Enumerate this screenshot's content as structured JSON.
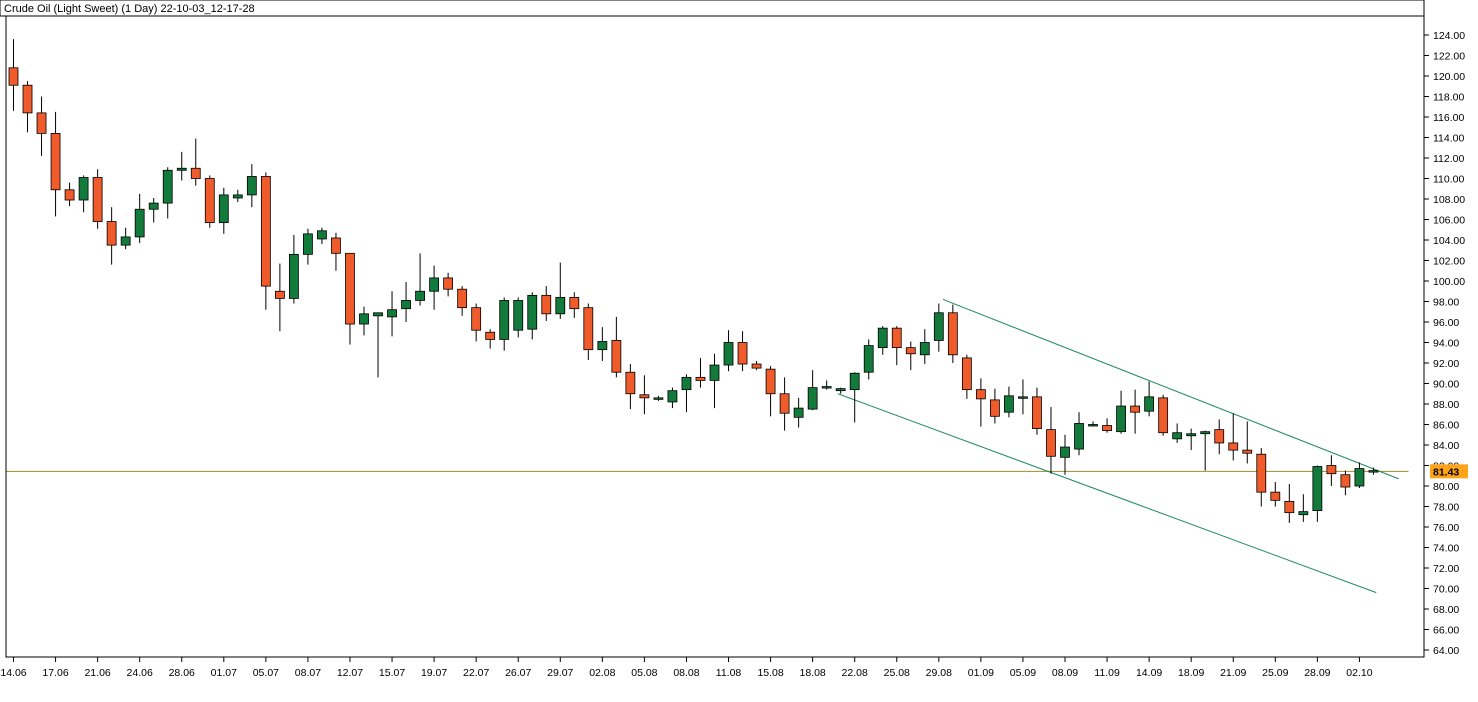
{
  "chart_data": {
    "type": "candlestick",
    "title": "Crude Oil (Light Sweet) (1 Day) 22-10-03_12-17-28",
    "ylim": [
      63,
      126
    ],
    "y_ticks": [
      124,
      122,
      120,
      118,
      116,
      114,
      112,
      110,
      108,
      106,
      104,
      102,
      100,
      98,
      96,
      94,
      92,
      90,
      88,
      86,
      84,
      82,
      80,
      78,
      76,
      74,
      72,
      70,
      68,
      66,
      64
    ],
    "y_tick_labels": [
      "124.00",
      "122.00",
      "120.00",
      "118.00",
      "116.00",
      "114.00",
      "112.00",
      "110.00",
      "108.00",
      "106.00",
      "104.00",
      "102.00",
      "100.00",
      "98.00",
      "96.00",
      "94.00",
      "92.00",
      "90.00",
      "88.00",
      "86.00",
      "84.00",
      "82.00",
      "80.00",
      "78.00",
      "76.00",
      "74.00",
      "72.00",
      "70.00",
      "68.00",
      "66.00",
      "64.00"
    ],
    "x_ticks": [
      {
        "bar": 0,
        "label": "14.06"
      },
      {
        "bar": 3,
        "label": "17.06"
      },
      {
        "bar": 6,
        "label": "21.06"
      },
      {
        "bar": 9,
        "label": "24.06"
      },
      {
        "bar": 12,
        "label": "28.06"
      },
      {
        "bar": 15,
        "label": "01.07"
      },
      {
        "bar": 18,
        "label": "05.07"
      },
      {
        "bar": 21,
        "label": "08.07"
      },
      {
        "bar": 24,
        "label": "12.07"
      },
      {
        "bar": 27,
        "label": "15.07"
      },
      {
        "bar": 30,
        "label": "19.07"
      },
      {
        "bar": 33,
        "label": "22.07"
      },
      {
        "bar": 36,
        "label": "26.07"
      },
      {
        "bar": 39,
        "label": "29.07"
      },
      {
        "bar": 42,
        "label": "02.08"
      },
      {
        "bar": 45,
        "label": "05.08"
      },
      {
        "bar": 48,
        "label": "08.08"
      },
      {
        "bar": 51,
        "label": "11.08"
      },
      {
        "bar": 54,
        "label": "15.08"
      },
      {
        "bar": 57,
        "label": "18.08"
      },
      {
        "bar": 60,
        "label": "22.08"
      },
      {
        "bar": 63,
        "label": "25.08"
      },
      {
        "bar": 66,
        "label": "29.08"
      },
      {
        "bar": 69,
        "label": "01.09"
      },
      {
        "bar": 72,
        "label": "05.09"
      },
      {
        "bar": 75,
        "label": "08.09"
      },
      {
        "bar": 78,
        "label": "11.09"
      },
      {
        "bar": 81,
        "label": "14.09"
      },
      {
        "bar": 84,
        "label": "18.09"
      },
      {
        "bar": 87,
        "label": "21.09"
      },
      {
        "bar": 90,
        "label": "25.09"
      },
      {
        "bar": 93,
        "label": "28.09"
      },
      {
        "bar": 96,
        "label": "02.10"
      }
    ],
    "candles": [
      {
        "o": 120.8,
        "h": 123.6,
        "l": 116.6,
        "c": 119.1
      },
      {
        "o": 119.1,
        "h": 119.5,
        "l": 114.5,
        "c": 116.4
      },
      {
        "o": 116.4,
        "h": 118.0,
        "l": 112.2,
        "c": 114.4
      },
      {
        "o": 114.4,
        "h": 116.5,
        "l": 106.3,
        "c": 108.9
      },
      {
        "o": 108.9,
        "h": 109.6,
        "l": 107.3,
        "c": 107.9
      },
      {
        "o": 107.9,
        "h": 110.3,
        "l": 106.7,
        "c": 110.1
      },
      {
        "o": 110.1,
        "h": 110.9,
        "l": 105.1,
        "c": 105.8
      },
      {
        "o": 105.8,
        "h": 107.2,
        "l": 101.6,
        "c": 103.5
      },
      {
        "o": 103.5,
        "h": 105.2,
        "l": 103.1,
        "c": 104.3
      },
      {
        "o": 104.3,
        "h": 108.5,
        "l": 103.7,
        "c": 107.0
      },
      {
        "o": 107.0,
        "h": 108.1,
        "l": 105.7,
        "c": 107.6
      },
      {
        "o": 107.6,
        "h": 111.1,
        "l": 106.1,
        "c": 110.8
      },
      {
        "o": 110.8,
        "h": 112.6,
        "l": 109.8,
        "c": 111.0
      },
      {
        "o": 111.0,
        "h": 113.9,
        "l": 109.3,
        "c": 110.0
      },
      {
        "o": 110.0,
        "h": 110.3,
        "l": 105.2,
        "c": 105.7
      },
      {
        "o": 105.7,
        "h": 109.1,
        "l": 104.6,
        "c": 108.4
      },
      {
        "o": 108.1,
        "h": 108.9,
        "l": 107.7,
        "c": 108.4
      },
      {
        "o": 108.4,
        "h": 111.4,
        "l": 107.2,
        "c": 110.2
      },
      {
        "o": 110.2,
        "h": 110.6,
        "l": 97.2,
        "c": 99.5
      },
      {
        "o": 99.0,
        "h": 101.7,
        "l": 95.1,
        "c": 98.3
      },
      {
        "o": 98.3,
        "h": 104.5,
        "l": 97.8,
        "c": 102.6
      },
      {
        "o": 102.6,
        "h": 105.1,
        "l": 101.6,
        "c": 104.6
      },
      {
        "o": 104.1,
        "h": 105.2,
        "l": 103.6,
        "c": 104.9
      },
      {
        "o": 104.2,
        "h": 104.7,
        "l": 101.0,
        "c": 102.7
      },
      {
        "o": 102.7,
        "h": 102.7,
        "l": 93.8,
        "c": 95.8
      },
      {
        "o": 95.8,
        "h": 97.5,
        "l": 94.7,
        "c": 96.8
      },
      {
        "o": 96.6,
        "h": 96.7,
        "l": 90.6,
        "c": 96.9
      },
      {
        "o": 96.5,
        "h": 99.0,
        "l": 94.6,
        "c": 97.2
      },
      {
        "o": 97.3,
        "h": 99.9,
        "l": 96.0,
        "c": 98.1
      },
      {
        "o": 98.1,
        "h": 102.7,
        "l": 97.6,
        "c": 99.0
      },
      {
        "o": 99.0,
        "h": 101.5,
        "l": 97.2,
        "c": 100.3
      },
      {
        "o": 100.3,
        "h": 100.8,
        "l": 98.5,
        "c": 99.2
      },
      {
        "o": 99.2,
        "h": 99.5,
        "l": 96.6,
        "c": 97.4
      },
      {
        "o": 97.4,
        "h": 97.8,
        "l": 94.1,
        "c": 95.2
      },
      {
        "o": 95.0,
        "h": 95.3,
        "l": 93.4,
        "c": 94.3
      },
      {
        "o": 94.3,
        "h": 98.4,
        "l": 93.2,
        "c": 98.1
      },
      {
        "o": 95.2,
        "h": 98.4,
        "l": 94.5,
        "c": 98.1
      },
      {
        "o": 95.3,
        "h": 98.9,
        "l": 94.3,
        "c": 98.6
      },
      {
        "o": 98.6,
        "h": 99.5,
        "l": 96.1,
        "c": 96.8
      },
      {
        "o": 96.8,
        "h": 101.8,
        "l": 96.3,
        "c": 98.4
      },
      {
        "o": 98.4,
        "h": 98.9,
        "l": 96.4,
        "c": 97.3
      },
      {
        "o": 97.4,
        "h": 97.8,
        "l": 92.3,
        "c": 93.3
      },
      {
        "o": 93.3,
        "h": 95.5,
        "l": 92.2,
        "c": 94.1
      },
      {
        "o": 94.2,
        "h": 96.5,
        "l": 90.6,
        "c": 91.1
      },
      {
        "o": 91.1,
        "h": 91.9,
        "l": 87.5,
        "c": 89.0
      },
      {
        "o": 88.9,
        "h": 90.8,
        "l": 87.0,
        "c": 88.6
      },
      {
        "o": 88.5,
        "h": 88.8,
        "l": 88.3,
        "c": 88.6
      },
      {
        "o": 88.2,
        "h": 89.6,
        "l": 87.6,
        "c": 89.3
      },
      {
        "o": 89.4,
        "h": 90.9,
        "l": 87.2,
        "c": 90.6
      },
      {
        "o": 90.6,
        "h": 92.5,
        "l": 89.6,
        "c": 90.3
      },
      {
        "o": 90.3,
        "h": 92.9,
        "l": 87.6,
        "c": 91.8
      },
      {
        "o": 91.8,
        "h": 95.2,
        "l": 91.2,
        "c": 94.0
      },
      {
        "o": 94.0,
        "h": 95.1,
        "l": 91.2,
        "c": 91.9
      },
      {
        "o": 91.9,
        "h": 92.2,
        "l": 91.3,
        "c": 91.5
      },
      {
        "o": 91.4,
        "h": 91.7,
        "l": 86.8,
        "c": 89.0
      },
      {
        "o": 89.0,
        "h": 90.6,
        "l": 85.4,
        "c": 87.1
      },
      {
        "o": 86.7,
        "h": 88.6,
        "l": 85.7,
        "c": 87.6
      },
      {
        "o": 87.5,
        "h": 91.3,
        "l": 87.4,
        "c": 89.6
      },
      {
        "o": 89.7,
        "h": 90.3,
        "l": 89.4,
        "c": 89.7
      },
      {
        "o": 89.3,
        "h": 89.6,
        "l": 89.0,
        "c": 89.5
      },
      {
        "o": 89.4,
        "h": 91.1,
        "l": 86.2,
        "c": 91.0
      },
      {
        "o": 91.1,
        "h": 94.3,
        "l": 90.4,
        "c": 93.7
      },
      {
        "o": 93.5,
        "h": 95.6,
        "l": 92.8,
        "c": 95.4
      },
      {
        "o": 95.4,
        "h": 95.6,
        "l": 91.8,
        "c": 93.5
      },
      {
        "o": 93.5,
        "h": 94.1,
        "l": 91.3,
        "c": 92.9
      },
      {
        "o": 92.8,
        "h": 95.3,
        "l": 91.9,
        "c": 94.0
      },
      {
        "o": 94.2,
        "h": 97.8,
        "l": 93.1,
        "c": 96.9
      },
      {
        "o": 96.9,
        "h": 97.7,
        "l": 92.0,
        "c": 92.8
      },
      {
        "o": 92.5,
        "h": 92.8,
        "l": 88.5,
        "c": 89.4
      },
      {
        "o": 89.4,
        "h": 90.5,
        "l": 85.8,
        "c": 88.5
      },
      {
        "o": 88.4,
        "h": 89.5,
        "l": 86.1,
        "c": 86.8
      },
      {
        "o": 87.2,
        "h": 89.7,
        "l": 86.7,
        "c": 88.8
      },
      {
        "o": 88.6,
        "h": 90.4,
        "l": 87.0,
        "c": 88.7
      },
      {
        "o": 88.7,
        "h": 89.6,
        "l": 85.0,
        "c": 85.6
      },
      {
        "o": 85.5,
        "h": 87.7,
        "l": 81.2,
        "c": 82.9
      },
      {
        "o": 82.8,
        "h": 85.0,
        "l": 81.1,
        "c": 83.8
      },
      {
        "o": 83.6,
        "h": 87.2,
        "l": 83.0,
        "c": 86.1
      },
      {
        "o": 86.0,
        "h": 86.3,
        "l": 85.8,
        "c": 86.0
      },
      {
        "o": 85.9,
        "h": 86.6,
        "l": 85.2,
        "c": 85.4
      },
      {
        "o": 85.3,
        "h": 89.3,
        "l": 85.1,
        "c": 87.8
      },
      {
        "o": 87.8,
        "h": 89.4,
        "l": 85.1,
        "c": 87.2
      },
      {
        "o": 87.3,
        "h": 90.2,
        "l": 86.8,
        "c": 88.7
      },
      {
        "o": 88.6,
        "h": 88.9,
        "l": 84.9,
        "c": 85.2
      },
      {
        "o": 84.6,
        "h": 86.1,
        "l": 84.2,
        "c": 85.2
      },
      {
        "o": 84.9,
        "h": 85.6,
        "l": 83.5,
        "c": 85.1
      },
      {
        "o": 85.1,
        "h": 85.4,
        "l": 81.5,
        "c": 85.3
      },
      {
        "o": 85.5,
        "h": 86.5,
        "l": 83.1,
        "c": 84.2
      },
      {
        "o": 84.2,
        "h": 87.1,
        "l": 82.5,
        "c": 83.5
      },
      {
        "o": 83.5,
        "h": 86.3,
        "l": 82.2,
        "c": 83.2
      },
      {
        "o": 83.1,
        "h": 83.7,
        "l": 78.0,
        "c": 79.4
      },
      {
        "o": 79.4,
        "h": 80.4,
        "l": 78.0,
        "c": 78.6
      },
      {
        "o": 78.5,
        "h": 80.2,
        "l": 76.4,
        "c": 77.4
      },
      {
        "o": 77.2,
        "h": 79.2,
        "l": 76.5,
        "c": 77.5
      },
      {
        "o": 77.6,
        "h": 82.0,
        "l": 76.5,
        "c": 81.9
      },
      {
        "o": 82.0,
        "h": 83.0,
        "l": 80.0,
        "c": 81.2
      },
      {
        "o": 81.1,
        "h": 81.5,
        "l": 79.1,
        "c": 79.9
      },
      {
        "o": 80.0,
        "h": 82.3,
        "l": 79.8,
        "c": 81.7
      },
      {
        "o": 81.4,
        "h": 81.8,
        "l": 81.1,
        "c": 81.5
      }
    ],
    "lines": [
      {
        "name": "horizontal-level",
        "from": {
          "bar": -0.5,
          "y": 81.43
        },
        "to": {
          "bar": 99.5,
          "y": 81.43
        },
        "color": "#a08a2c"
      },
      {
        "name": "channel-upper",
        "from": {
          "bar": 66.3,
          "y": 98.2
        },
        "to": {
          "bar": 98.8,
          "y": 80.7
        },
        "color": "#1e8a5e"
      },
      {
        "name": "channel-lower",
        "from": {
          "bar": 58.8,
          "y": 89.0
        },
        "to": {
          "bar": 97.2,
          "y": 69.6
        },
        "color": "#1e8a5e"
      }
    ],
    "price_marker": {
      "value": 81.43,
      "label": "81.43",
      "color": "#ffa31a"
    },
    "colors": {
      "up": "#127a3a",
      "down": "#ef5b2a",
      "outline": "#000000",
      "axis": "#000000"
    },
    "grid": false
  }
}
